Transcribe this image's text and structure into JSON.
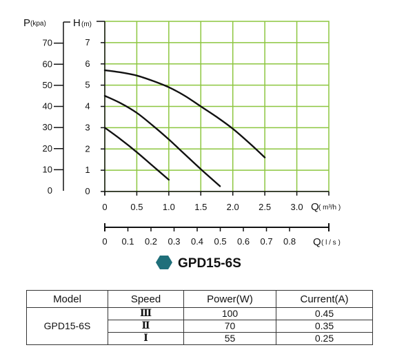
{
  "chart_data": {
    "type": "line",
    "title": "GPD15-6S",
    "title_marker_color": "#1f6f7a",
    "grid": true,
    "grid_color": "#8cc63f",
    "x": {
      "label": "Q",
      "unit": "( m³/h )",
      "range": [
        0,
        3.5
      ],
      "ticks": [
        "0",
        "0.5",
        "1.0",
        "1.5",
        "2.0",
        "2.5",
        "3.0"
      ]
    },
    "x2": {
      "label": "Q",
      "unit": "( l / s )",
      "range": [
        0,
        0.97
      ],
      "ticks": [
        "0",
        "0.1",
        "0.2",
        "0.3",
        "0.4",
        "0.5",
        "0.6",
        "0.7",
        "0.8"
      ]
    },
    "y": {
      "label": "H",
      "unit": "(m)",
      "range": [
        0,
        8
      ],
      "ticks": [
        "0",
        "1",
        "2",
        "3",
        "4",
        "5",
        "6",
        "7"
      ]
    },
    "y2": {
      "label": "P",
      "unit": "(kpa)",
      "range": [
        0,
        80
      ],
      "ticks": [
        "0",
        "10",
        "20",
        "30",
        "40",
        "50",
        "60",
        "70"
      ]
    },
    "series": [
      {
        "x": [
          0,
          0.25,
          0.5,
          0.75,
          1.0,
          1.25,
          1.5,
          1.75,
          2.0,
          2.25,
          2.5
        ],
        "y": [
          5.7,
          5.6,
          5.45,
          5.2,
          4.9,
          4.5,
          4.0,
          3.5,
          2.95,
          2.3,
          1.6
        ]
      },
      {
        "x": [
          0,
          0.25,
          0.5,
          0.75,
          1.0,
          1.25,
          1.5,
          1.8
        ],
        "y": [
          4.5,
          4.15,
          3.7,
          3.1,
          2.45,
          1.75,
          1.05,
          0.25
        ]
      },
      {
        "x": [
          0,
          0.25,
          0.5,
          0.75,
          1.0
        ],
        "y": [
          3.0,
          2.45,
          1.85,
          1.2,
          0.55
        ]
      }
    ]
  },
  "spec_table": {
    "headers": [
      "Model",
      "Speed",
      "Power(W)",
      "Current(A)"
    ],
    "model": "GPD15-6S",
    "rows": [
      {
        "speed": "Ⅲ",
        "power": "100",
        "current": "0.45"
      },
      {
        "speed": "Ⅱ",
        "power": "70",
        "current": "0.35"
      },
      {
        "speed": "Ⅰ",
        "power": "55",
        "current": "0.25"
      }
    ]
  }
}
